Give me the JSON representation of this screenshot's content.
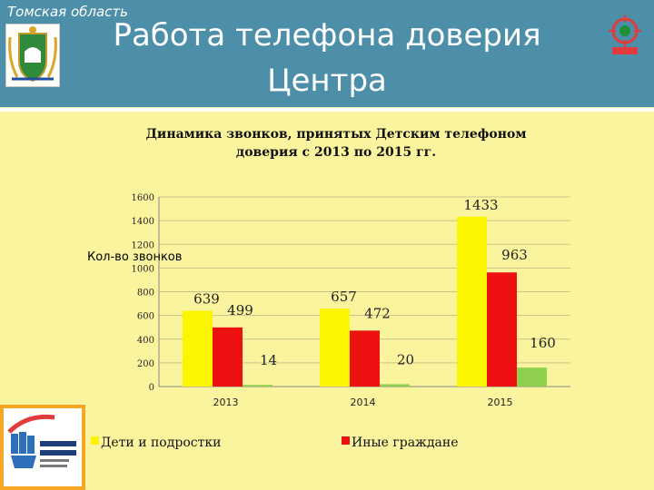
{
  "header": {
    "region": "Томская область",
    "title_line1": "Работа телефона доверия",
    "title_line2": "Центра"
  },
  "colors": {
    "header_bg": "#4d8fa8",
    "background": "#fbf49e",
    "series_children": "#fbf500",
    "series_others": "#ee1111",
    "series_third": "#8fd14f"
  },
  "icons": [
    "coat-of-arms-icon",
    "helpline-badge-icon",
    "telefon-doveria-logo-icon"
  ],
  "chart_data": {
    "type": "bar",
    "title_line1": "Динамика звонков, принятых Детским телефоном",
    "title_line2": "доверия с 2013 по 2015 гг.",
    "ylabel": "Кол-во звонков",
    "xlabel": "",
    "categories": [
      "2013",
      "2014",
      "2015"
    ],
    "ylim": [
      0,
      1600
    ],
    "yticks": [
      0,
      200,
      400,
      600,
      800,
      1000,
      1200,
      1400,
      1600
    ],
    "grid": true,
    "legend_position": "bottom",
    "series": [
      {
        "name": "Дети и подростки",
        "color": "#fbf500",
        "values": [
          639,
          657,
          1433
        ]
      },
      {
        "name": "Иные граждане",
        "color": "#ee1111",
        "values": [
          499,
          472,
          963
        ]
      },
      {
        "color": "#8fd14f",
        "values": [
          14,
          20,
          160
        ]
      }
    ]
  }
}
